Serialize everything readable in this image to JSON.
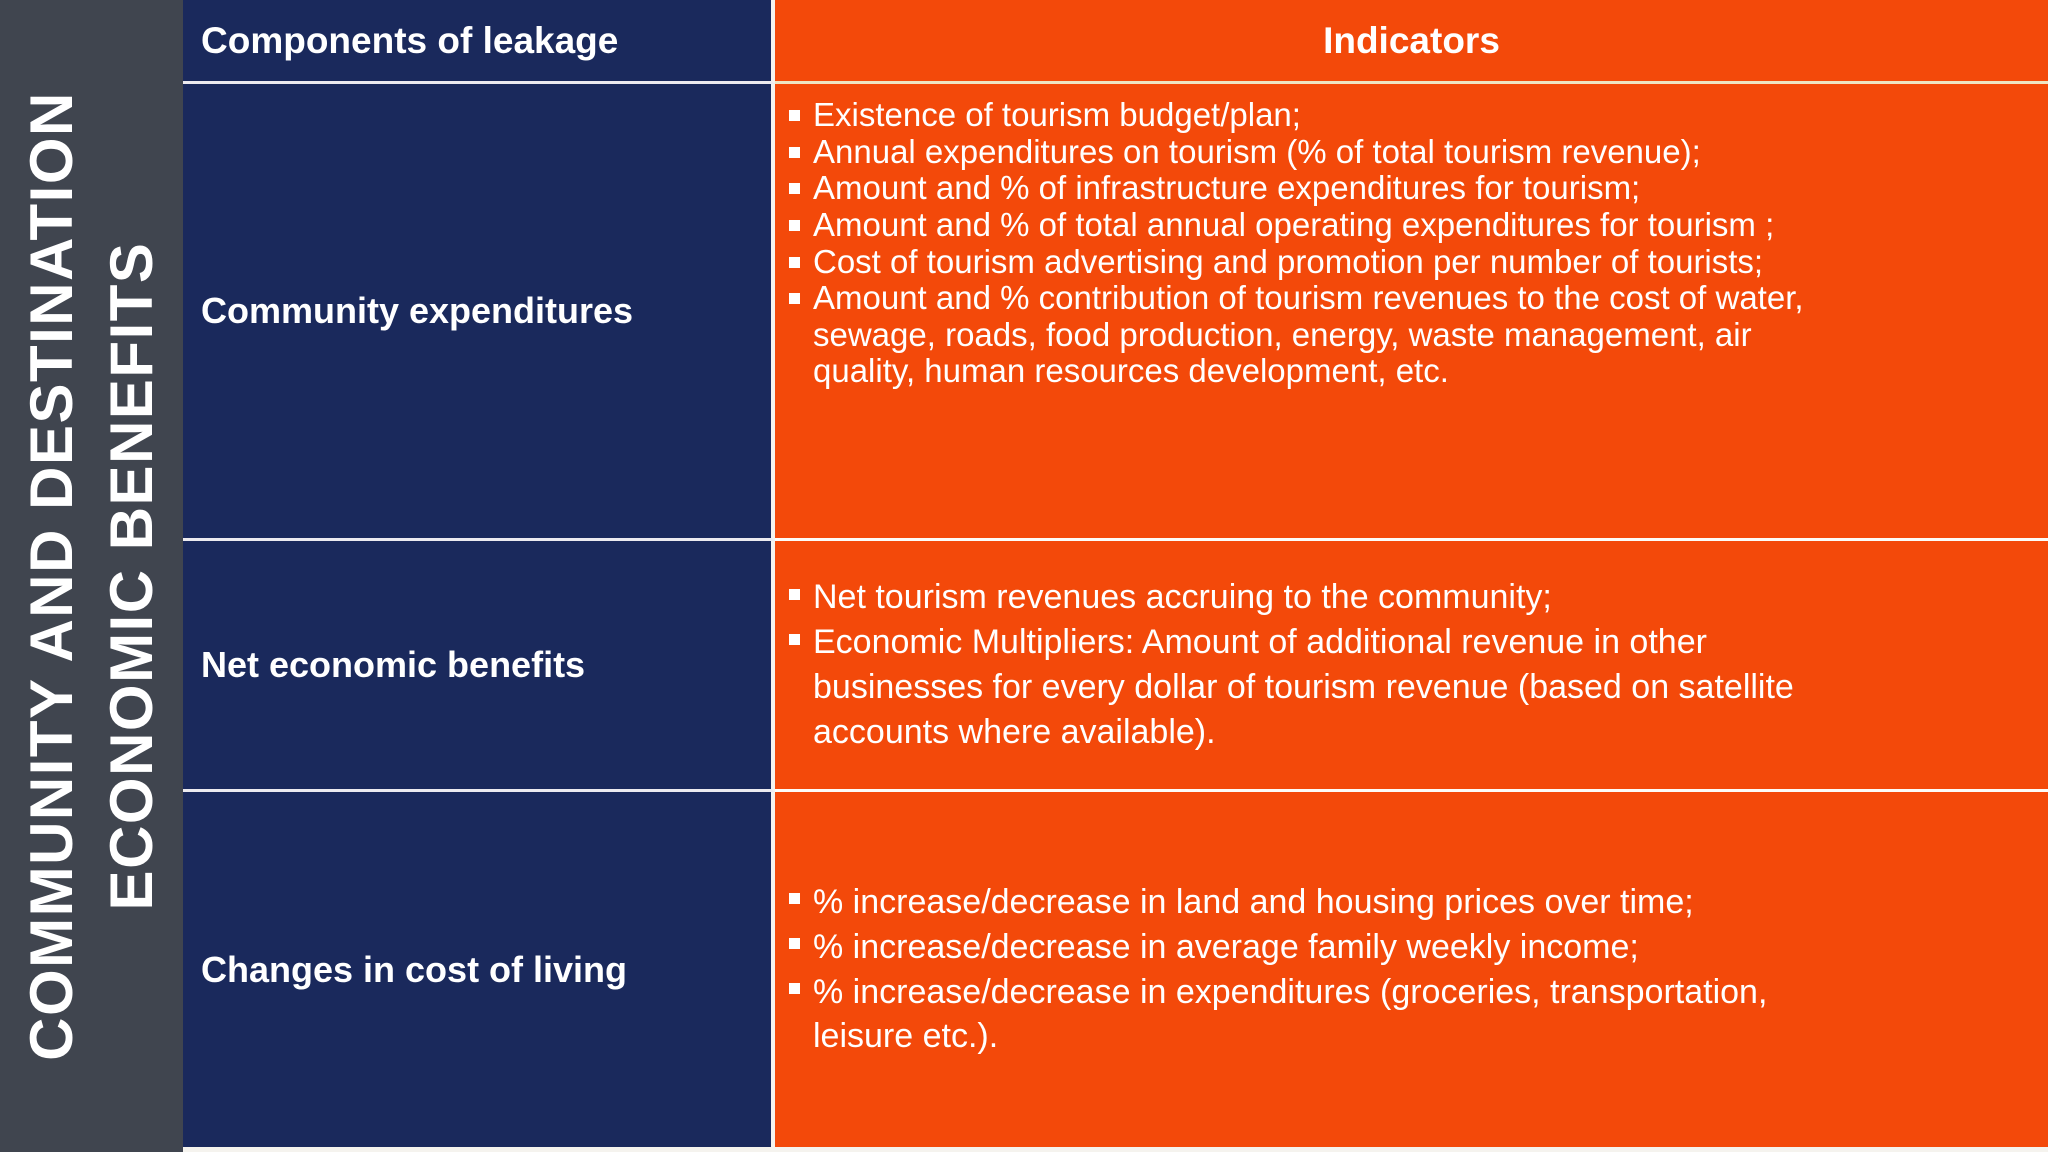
{
  "slide": {
    "vertical_title": {
      "line1": "COMMUNITY AND DESTINATION",
      "line2": "ECONOMIC BENEFITS"
    }
  },
  "table": {
    "headers": {
      "components": "Components of leakage",
      "indicators": "Indicators"
    },
    "rows": [
      {
        "component": "Community expenditures",
        "indicators": [
          "Existence of tourism budget/plan;",
          "Annual expenditures on tourism (% of total tourism revenue);",
          "Amount and % of infrastructure expenditures for tourism;",
          "Amount and % of total annual operating expenditures for tourism ;",
          "Cost of tourism advertising and promotion per number of tourists;",
          "Amount and % contribution of tourism revenues to the cost of water,\nsewage, roads, food production, energy, waste management, air\nquality, human resources development, etc."
        ]
      },
      {
        "component": "Net economic benefits",
        "indicators": [
          "Net tourism revenues accruing to the community;",
          "Economic Multipliers: Amount of additional revenue in other\nbusinesses for every dollar of tourism revenue (based on satellite\naccounts where available)."
        ]
      },
      {
        "component": "Changes in cost of living",
        "indicators": [
          "% increase/decrease in land and housing prices over time;",
          "% increase/decrease in average family weekly income;",
          "% increase/decrease in expenditures (groceries, transportation,\nleisure etc.)."
        ]
      }
    ]
  },
  "theme": {
    "navy": "#1a295c",
    "orange": "#f3490a",
    "strip_gray": "#40454f",
    "divider": "#f5f3ee",
    "header_underline": "#efe5c3",
    "text_white": "#ffffff"
  }
}
